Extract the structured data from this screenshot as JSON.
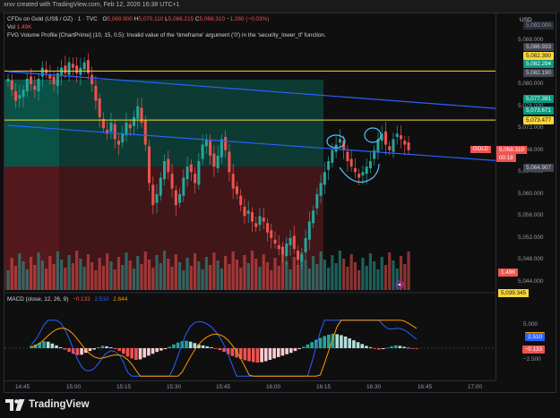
{
  "snapshot_line": "xrxv created with TradingView.com, Feb 12, 2026 16:38 UTC+1",
  "header": {
    "symbol": "CFDs on Gold (US$ / OZ) · 1 · TVC",
    "o_label": "O",
    "o": "5,069.900",
    "h_label": "H",
    "h": "5,070.110",
    "l_label": "L",
    "l": "5,066.215",
    "c_label": "C",
    "c": "5,068.310",
    "change": "−1.280 (−0.03%)",
    "vol_label": "Vol",
    "vol": "1.49K",
    "fvg_warning": "FVG Volume Profile [ChartPrime] (10, 15, 0.5): Invalid value of the 'timeframe' argument ('0') in the 'security_lower_tf' function."
  },
  "currency": "USD",
  "price_axis": {
    "ticks": [
      {
        "v": 5088,
        "t": "5,088.000"
      },
      {
        "v": 5080,
        "t": "5,080.000"
      },
      {
        "v": 5076,
        "t": "5,076.000"
      },
      {
        "v": 5072,
        "t": "5,072.000"
      },
      {
        "v": 5068,
        "t": "5,068.000"
      },
      {
        "v": 5064,
        "t": "5,064.000"
      },
      {
        "v": 5060,
        "t": "5,060.000"
      },
      {
        "v": 5056,
        "t": "5,056.000"
      },
      {
        "v": 5052,
        "t": "5,052.000"
      },
      {
        "v": 5048,
        "t": "5,048.000"
      },
      {
        "v": 5044,
        "t": "5,044.000"
      }
    ],
    "labels": [
      {
        "v": 5090.7,
        "t": "5,092.000",
        "bg": "#2a2e39",
        "fg": "#9598a1"
      },
      {
        "v": 5086.933,
        "t": "5,086.933",
        "bg": "#434651",
        "fg": "#d1d4dc"
      },
      {
        "v": 5085.2,
        "t": "5,082.390",
        "bg": "#fdd835",
        "fg": "#131722"
      },
      {
        "v": 5083.7,
        "t": "5,082.294",
        "bg": "#089981",
        "fg": "#ffffff"
      },
      {
        "v": 5082.19,
        "t": "5,082.190",
        "bg": "#434651",
        "fg": "#d1d4dc"
      },
      {
        "v": 5077.391,
        "t": "5,077.391",
        "bg": "#089981",
        "fg": "#ffffff"
      },
      {
        "v": 5075.3,
        "t": "5,073.671",
        "bg": "#089981",
        "fg": "#ffffff"
      },
      {
        "v": 5073.477,
        "t": "5,073.477",
        "bg": "#fdd835",
        "fg": "#131722"
      },
      {
        "v": 5064.907,
        "t": "5,064.907",
        "bg": "#434651",
        "fg": "#d1d4dc"
      }
    ],
    "gold_tag": "GOLD",
    "gold_price": "5,068.310",
    "countdown": "00:18",
    "vol_tag": "1.49K",
    "vol_ma_tag": "5,039.345"
  },
  "chart_data": {
    "type": "candlestick",
    "symbol": "GOLD",
    "timeframe": "1",
    "y_range": [
      5040,
      5092
    ],
    "x_labels": [
      "14:45",
      "15:00",
      "15:15",
      "15:30",
      "15:45",
      "16:00",
      "16:15",
      "16:30",
      "16:45",
      "17:00"
    ],
    "close_series": [
      5081,
      5079,
      5077,
      5078,
      5079,
      5081,
      5080,
      5079,
      5081,
      5083,
      5082,
      5081,
      5080,
      5082,
      5083,
      5082,
      5084,
      5083,
      5082,
      5083,
      5084,
      5082,
      5080,
      5077,
      5074,
      5072,
      5071,
      5073,
      5070,
      5069,
      5071,
      5073,
      5072,
      5074,
      5076,
      5073,
      5069,
      5062,
      5058,
      5060,
      5063,
      5066,
      5064,
      5061,
      5058,
      5060,
      5063,
      5065,
      5064,
      5062,
      5066,
      5069,
      5070,
      5067,
      5065,
      5067,
      5070,
      5068,
      5064,
      5061,
      5060,
      5058,
      5056,
      5057,
      5055,
      5054,
      5056,
      5055,
      5053,
      5052,
      5051,
      5050,
      5049,
      5051,
      5052,
      5050,
      5048,
      5049,
      5052,
      5055,
      5057,
      5060,
      5062,
      5064,
      5066,
      5068,
      5069,
      5070,
      5068,
      5066,
      5065,
      5064,
      5063,
      5064,
      5065,
      5066,
      5068,
      5070,
      5071,
      5069,
      5068,
      5070,
      5071,
      5070,
      5069,
      5068
    ],
    "lines": [
      {
        "name": "upper trendline",
        "from": [
          0,
          5082.3
        ],
        "to": [
          105,
          5075.6
        ],
        "color": "#2962ff"
      },
      {
        "name": "lower trendline",
        "from": [
          0,
          5072.5
        ],
        "to": [
          105,
          5066.1
        ],
        "color": "#2962ff"
      },
      {
        "name": "level",
        "value": 5082.39,
        "color": "#fdd835"
      },
      {
        "name": "level",
        "value": 5073.477,
        "color": "#fdd835"
      }
    ],
    "volume_label": "Vol 1.49K"
  },
  "macd": {
    "title": "MACD (close, 12, 26, 9)",
    "v1": "−0.133",
    "v2": "2.510",
    "v3": "2.644",
    "colors": {
      "v1": "#ef5350",
      "v2": "#2962ff",
      "v3": "#ff9800"
    },
    "ticks": [
      {
        "v": 5,
        "t": "5.000"
      },
      {
        "v": -2.5,
        "t": "−2.500"
      }
    ],
    "labels": [
      {
        "v": 2.644,
        "t": "2.644",
        "bg": "#ff9800",
        "fg": "#131722"
      },
      {
        "v": 2.51,
        "t": "2.510",
        "bg": "#2962ff",
        "fg": "#ffffff"
      },
      {
        "v": -0.133,
        "t": "−0.133",
        "bg": "#ef5350",
        "fg": "#ffffff"
      }
    ],
    "hist": [
      0.5,
      0.8,
      1.2,
      1.5,
      1.4,
      1.0,
      0.6,
      0.2,
      -0.3,
      -0.8,
      -1.2,
      -1.5,
      -1.4,
      -1.0,
      -0.6,
      -0.3,
      0.2,
      0.5,
      0.4,
      0.2,
      -0.2,
      -0.6,
      -1.2,
      -1.8,
      -2.2,
      -2.5,
      -2.4,
      -2.0,
      -1.6,
      -1.2,
      -0.8,
      -0.5,
      -0.2,
      0.3,
      0.8,
      1.2,
      1.5,
      1.6,
      1.4,
      1.1,
      0.8,
      0.6,
      0.4,
      0.2,
      -0.1,
      -0.4,
      -0.8,
      -1.3,
      -1.7,
      -2.0,
      -2.3,
      -2.6,
      -2.8,
      -3.0,
      -3.1,
      -3.0,
      -2.8,
      -2.5,
      -2.2,
      -1.9,
      -1.6,
      -1.3,
      -1.0,
      -0.6,
      -0.2,
      0.3,
      0.8,
      1.3,
      1.8,
      2.2,
      2.6,
      2.9,
      3.1,
      3.0,
      2.8,
      2.5,
      2.1,
      1.7,
      1.3,
      0.9,
      0.5,
      0.2,
      -0.1,
      -0.3,
      -0.2,
      0.1,
      0.4,
      0.6,
      0.5,
      0.3,
      0.1,
      -0.1,
      -0.13
    ]
  },
  "time_axis": {
    "ticks": [
      "14:45",
      "15:00",
      "15:15",
      "15:30",
      "15:45",
      "16:00",
      "16:15",
      "16:30",
      "16:45",
      "17:00"
    ]
  },
  "brand": "TradingView"
}
